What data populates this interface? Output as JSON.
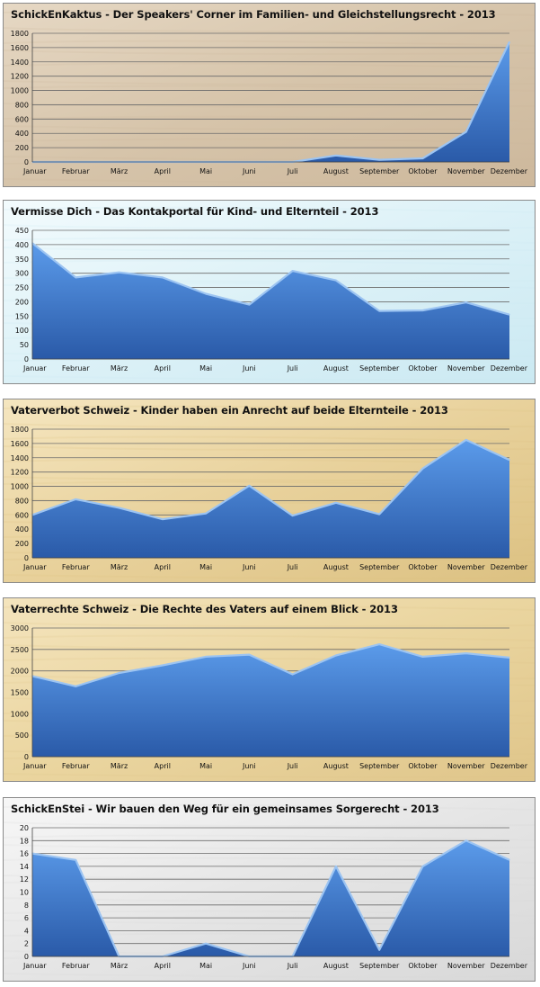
{
  "colors": {
    "area_top": "#5b9bea",
    "area_bottom": "#2a5aa8",
    "area_edge": "#9cc4f2",
    "grid": "#6b6b6b"
  },
  "chart_data": [
    {
      "type": "area",
      "title": "SchickEnKaktus  - Der Speakers' Corner im Familien- und Gleichstellungsrecht - 2013",
      "categories": [
        "Januar",
        "Februar",
        "März",
        "April",
        "Mai",
        "Juni",
        "Juli",
        "August",
        "September",
        "Oktober",
        "November",
        "Dezember"
      ],
      "values": [
        0,
        0,
        0,
        0,
        0,
        0,
        0,
        90,
        30,
        50,
        420,
        1680
      ],
      "ylim": [
        0,
        1800
      ],
      "yticks": [
        0,
        200,
        400,
        600,
        800,
        1000,
        1200,
        1400,
        1600,
        1800
      ],
      "grid": true,
      "background": "wood"
    },
    {
      "type": "area",
      "title": "Vermisse Dich  - Das Kontakportal für Kind- und Elternteil - 2013",
      "categories": [
        "Januar",
        "Februar",
        "März",
        "April",
        "Mai",
        "Juni",
        "Juli",
        "August",
        "September",
        "Oktober",
        "November",
        "Dezember"
      ],
      "values": [
        405,
        285,
        303,
        285,
        228,
        190,
        308,
        275,
        168,
        170,
        198,
        155
      ],
      "ylim": [
        0,
        450
      ],
      "yticks": [
        0,
        50,
        100,
        150,
        200,
        250,
        300,
        350,
        400,
        450
      ],
      "grid": true,
      "background": "sky"
    },
    {
      "type": "area",
      "title": "Vaterverbot Schweiz - Kinder haben ein Anrecht auf beide Elternteile - 2013",
      "categories": [
        "Januar",
        "Februar",
        "März",
        "April",
        "Mai",
        "Juni",
        "Juli",
        "August",
        "September",
        "Oktober",
        "November",
        "Dezember"
      ],
      "values": [
        600,
        820,
        700,
        540,
        620,
        1010,
        590,
        770,
        610,
        1250,
        1650,
        1370
      ],
      "ylim": [
        0,
        1800
      ],
      "yticks": [
        0,
        200,
        400,
        600,
        800,
        1000,
        1200,
        1400,
        1600,
        1800
      ],
      "grid": true,
      "background": "parchment"
    },
    {
      "type": "area",
      "title": "Vaterrechte Schweiz - Die Rechte des Vaters auf einem Blick - 2013",
      "categories": [
        "Januar",
        "Februar",
        "März",
        "April",
        "Mai",
        "Juni",
        "Juli",
        "August",
        "September",
        "Oktober",
        "November",
        "Dezember"
      ],
      "values": [
        1880,
        1640,
        1950,
        2130,
        2330,
        2380,
        1920,
        2360,
        2620,
        2330,
        2410,
        2310
      ],
      "ylim": [
        0,
        3000
      ],
      "yticks": [
        0,
        500,
        1000,
        1500,
        2000,
        2500,
        3000
      ],
      "grid": true,
      "background": "sand"
    },
    {
      "type": "area",
      "title": "SchickEnStei - Wir bauen den Weg für ein gemeinsames Sorgerecht - 2013",
      "categories": [
        "Januar",
        "Februar",
        "März",
        "April",
        "Mai",
        "Juni",
        "Juli",
        "August",
        "September",
        "Oktober",
        "November",
        "Dezember"
      ],
      "values": [
        16,
        15,
        0,
        0,
        2,
        0,
        0,
        14,
        1,
        14,
        18,
        15
      ],
      "ylim": [
        0,
        20
      ],
      "yticks": [
        0,
        2,
        4,
        6,
        8,
        10,
        12,
        14,
        16,
        18,
        20
      ],
      "grid": true,
      "background": "marble"
    }
  ]
}
